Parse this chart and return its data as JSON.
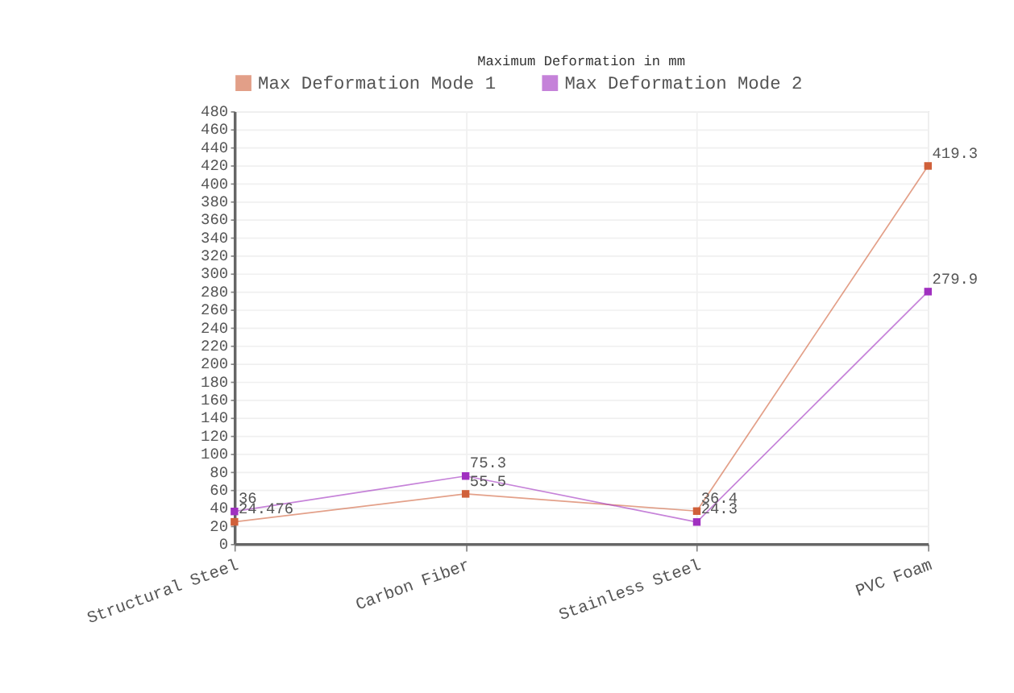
{
  "chart_data": {
    "type": "line",
    "title": "Maximum Deformation in mm",
    "categories": [
      "Structural Steel",
      "Carbon Fiber",
      "Stainless Steel",
      "PVC Foam"
    ],
    "series": [
      {
        "name": "Max Deformation Mode 1",
        "color": "#d0603a",
        "values": [
          24.476,
          55.5,
          36.4,
          419.3
        ]
      },
      {
        "name": "Max Deformation Mode 2",
        "color": "#a030c0",
        "values": [
          36,
          75.3,
          24.3,
          279.9
        ]
      }
    ],
    "ylim": [
      0,
      480
    ],
    "yticks": [
      0,
      20,
      40,
      60,
      80,
      100,
      120,
      140,
      160,
      180,
      200,
      220,
      240,
      260,
      280,
      300,
      320,
      340,
      360,
      380,
      400,
      420,
      440,
      460,
      480
    ],
    "grid": true,
    "legend": "top left",
    "marker": "square",
    "line_style": "solid",
    "data_labels": true
  }
}
